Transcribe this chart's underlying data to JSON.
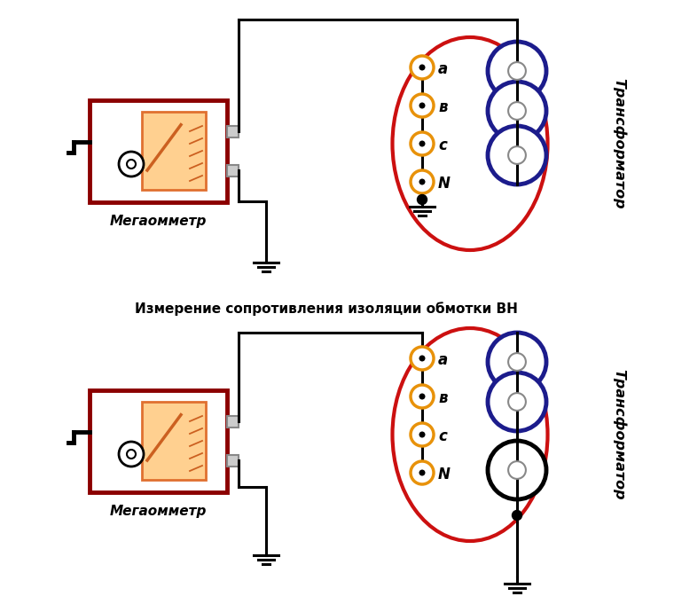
{
  "bg_color": "#ffffff",
  "title_text": "Измерение сопротивления изоляции обмотки ВН",
  "title_fontsize": 11,
  "meter_label": "Мегаомметр",
  "transformer_label": "Трансформатор",
  "phase_labels": [
    "a",
    "в",
    "c",
    "N"
  ],
  "dark_red": "#8B0000",
  "orange": "#E8920A",
  "blue_dark": "#1C1C8C",
  "black": "#000000",
  "wire_lw": 2.2,
  "ellipse_red": "#CC1010",
  "dial_border": "#E07030",
  "dial_fill": "#FFD090",
  "needle_color": "#CC6020",
  "scale_color": "#CC6020",
  "terminal_border": "#888888",
  "terminal_fill": "#cccccc"
}
